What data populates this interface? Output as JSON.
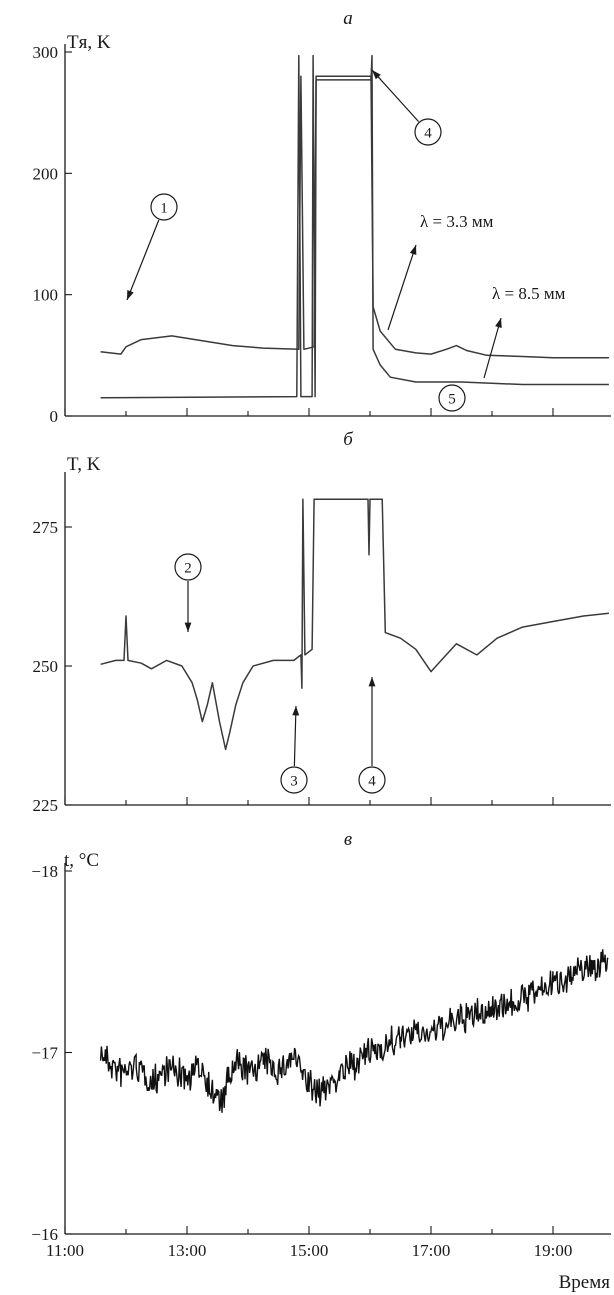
{
  "chart_data": [
    {
      "panel": "а",
      "type": "line",
      "ylabel": "Tя, K",
      "ylim": [
        0,
        300
      ],
      "yticks": [
        0,
        100,
        200,
        300
      ],
      "x_range": [
        "11:30",
        "19:55"
      ],
      "series": [
        {
          "name": "λ = 3.3 мм",
          "points": [
            [
              "11:35",
              53
            ],
            [
              "11:55",
              51
            ],
            [
              "12:00",
              57
            ],
            [
              "12:15",
              63
            ],
            [
              "12:45",
              66
            ],
            [
              "13:15",
              62
            ],
            [
              "13:45",
              58
            ],
            [
              "14:15",
              56
            ],
            [
              "14:50",
              55
            ],
            [
              "14:52",
              280
            ],
            [
              "14:55",
              55
            ],
            [
              "15:05",
              57
            ],
            [
              "15:07",
              280
            ],
            [
              "16:01",
              280
            ],
            [
              "16:03",
              90
            ],
            [
              "16:10",
              70
            ],
            [
              "16:25",
              55
            ],
            [
              "16:45",
              52
            ],
            [
              "17:00",
              51
            ],
            [
              "17:15",
              55
            ],
            [
              "17:25",
              58
            ],
            [
              "17:35",
              54
            ],
            [
              "17:55",
              50
            ],
            [
              "18:30",
              49
            ],
            [
              "19:00",
              48
            ],
            [
              "19:55",
              48
            ]
          ]
        },
        {
          "name": "λ = 8.5 мм",
          "points": [
            [
              "11:35",
              15
            ],
            [
              "14:48",
              16
            ],
            [
              "14:50",
              297
            ],
            [
              "14:52",
              16
            ],
            [
              "15:03",
              16
            ],
            [
              "15:04",
              297
            ],
            [
              "15:06",
              16
            ],
            [
              "15:07",
              277
            ],
            [
              "16:01",
              277
            ],
            [
              "16:02",
              297
            ],
            [
              "16:03",
              55
            ],
            [
              "16:10",
              42
            ],
            [
              "16:20",
              32
            ],
            [
              "16:45",
              28
            ],
            [
              "17:30",
              28
            ],
            [
              "18:30",
              26
            ],
            [
              "19:55",
              26
            ]
          ]
        }
      ],
      "annotations": [
        {
          "label": "1",
          "at": [
            "12:00",
            90
          ]
        },
        {
          "label": "4",
          "at": [
            "16:01",
            290
          ]
        },
        {
          "label": "5",
          "at": [
            "17:30",
            28
          ]
        }
      ]
    },
    {
      "panel": "б",
      "type": "line",
      "ylabel": "T, K",
      "ylim": [
        225,
        282
      ],
      "yticks": [
        225,
        250,
        275
      ],
      "x_range": [
        "11:30",
        "19:55"
      ],
      "series": [
        {
          "points": [
            [
              "11:35",
              250.3
            ],
            [
              "11:50",
              251
            ],
            [
              "11:58",
              251
            ],
            [
              "12:00",
              259
            ],
            [
              "12:02",
              251
            ],
            [
              "12:15",
              250.5
            ],
            [
              "12:25",
              249.5
            ],
            [
              "12:40",
              251
            ],
            [
              "12:55",
              250
            ],
            [
              "13:05",
              247
            ],
            [
              "13:10",
              244
            ],
            [
              "13:15",
              240
            ],
            [
              "13:20",
              243
            ],
            [
              "13:25",
              247
            ],
            [
              "13:32",
              240
            ],
            [
              "13:38",
              235
            ],
            [
              "13:42",
              238
            ],
            [
              "13:48",
              243
            ],
            [
              "13:55",
              247
            ],
            [
              "14:05",
              250
            ],
            [
              "14:25",
              251
            ],
            [
              "14:45",
              251
            ],
            [
              "14:52",
              252
            ],
            [
              "14:53",
              246
            ],
            [
              "14:54",
              280
            ],
            [
              "14:56",
              252
            ],
            [
              "15:03",
              253
            ],
            [
              "15:05",
              280
            ],
            [
              "15:58",
              280
            ],
            [
              "15:59",
              270
            ],
            [
              "16:00",
              280
            ],
            [
              "16:12",
              280
            ],
            [
              "16:15",
              256
            ],
            [
              "16:30",
              255
            ],
            [
              "16:45",
              253
            ],
            [
              "17:00",
              249
            ],
            [
              "17:10",
              251
            ],
            [
              "17:25",
              254
            ],
            [
              "17:45",
              252
            ],
            [
              "18:05",
              255
            ],
            [
              "18:30",
              257
            ],
            [
              "19:00",
              258
            ],
            [
              "19:30",
              259
            ],
            [
              "19:55",
              259.5
            ]
          ]
        }
      ],
      "annotations": [
        {
          "label": "2",
          "at": [
            "13:12",
            250
          ]
        },
        {
          "label": "3",
          "at": [
            "14:54",
            246
          ]
        },
        {
          "label": "4",
          "at": [
            "16:12",
            255
          ]
        }
      ]
    },
    {
      "panel": "в",
      "type": "line",
      "ylabel": "t, °C",
      "ylim": [
        -16,
        -18
      ],
      "y_inverted": true,
      "yticks": [
        -18,
        -17,
        -16
      ],
      "xlabel": "Время",
      "xticks": [
        "11:00",
        "13:00",
        "15:00",
        "17:00",
        "19:00"
      ],
      "x_range": [
        "11:00",
        "19:55"
      ],
      "series": [
        {
          "points": [
            [
              "11:35",
              -17.0
            ],
            [
              "11:55",
              -16.88
            ],
            [
              "12:10",
              -16.93
            ],
            [
              "12:25",
              -16.83
            ],
            [
              "12:40",
              -16.92
            ],
            [
              "13:00",
              -16.86
            ],
            [
              "13:15",
              -16.93
            ],
            [
              "13:25",
              -16.78
            ],
            [
              "13:35",
              -16.72
            ],
            [
              "13:40",
              -16.85
            ],
            [
              "13:50",
              -16.94
            ],
            [
              "14:00",
              -16.89
            ],
            [
              "14:15",
              -16.95
            ],
            [
              "14:30",
              -16.9
            ],
            [
              "14:45",
              -16.98
            ],
            [
              "15:00",
              -16.82
            ],
            [
              "15:10",
              -16.78
            ],
            [
              "15:30",
              -16.88
            ],
            [
              "16:00",
              -17.0
            ],
            [
              "16:30",
              -17.08
            ],
            [
              "17:00",
              -17.12
            ],
            [
              "17:30",
              -17.18
            ],
            [
              "18:00",
              -17.24
            ],
            [
              "18:30",
              -17.3
            ],
            [
              "19:00",
              -17.38
            ],
            [
              "19:30",
              -17.46
            ],
            [
              "19:55",
              -17.5
            ]
          ]
        }
      ]
    }
  ]
}
